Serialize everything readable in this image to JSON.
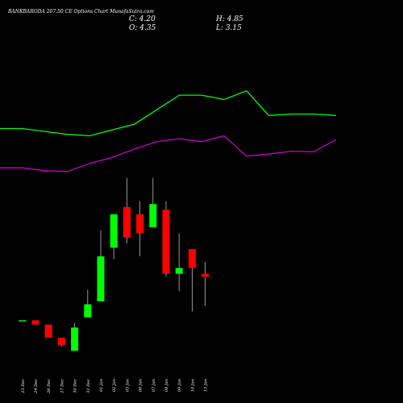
{
  "header": {
    "title": "BANKBARODA 207.50 CE Options Chart MunafaSutra.com",
    "close_label": "C: 4.20",
    "open_label": "O: 4.35",
    "high_label": "H: 4.85",
    "low_label": "L: 3.15"
  },
  "colors": {
    "background": "#000000",
    "up": "#00ff00",
    "down": "#ff0000",
    "wick": "#bbbbbb",
    "upper_band": "#00ff00",
    "lower_band": "#cc00cc",
    "text": "#ffffff"
  },
  "chart_data": {
    "type": "candlestick",
    "title": "BANKBARODA 207.50 CE Options Chart MunafaSutra.com",
    "candles": [
      {
        "label": "23 Dec",
        "open": 0.7,
        "close": 0.7,
        "high": 0.7,
        "low": 0.7
      },
      {
        "label": "24 Dec",
        "open": 0.7,
        "close": 0.55,
        "high": 0.7,
        "low": 0.55
      },
      {
        "label": "26 Dec",
        "open": 0.55,
        "close": 0.1,
        "high": 0.55,
        "low": 0.1
      },
      {
        "label": "27 Dec",
        "open": 0.1,
        "close": -0.15,
        "high": 0.1,
        "low": -0.2
      },
      {
        "label": "30 Dec",
        "open": -0.35,
        "close": 0.45,
        "high": 0.6,
        "low": -0.35
      },
      {
        "label": "31 Dec",
        "open": 0.8,
        "close": 1.25,
        "high": 1.75,
        "low": 0.8
      },
      {
        "label": "01 Jan",
        "open": 1.35,
        "close": 2.9,
        "high": 3.8,
        "low": 1.35
      },
      {
        "label": "02 Jan",
        "open": 3.2,
        "close": 4.35,
        "high": 4.35,
        "low": 2.8
      },
      {
        "label": "03 Jan",
        "open": 4.6,
        "close": 3.55,
        "high": 5.6,
        "low": 3.35
      },
      {
        "label": "06 Jan",
        "open": 4.35,
        "close": 3.7,
        "high": 4.8,
        "low": 2.9
      },
      {
        "label": "07 Jan",
        "open": 3.9,
        "close": 4.7,
        "high": 5.6,
        "low": 3.9
      },
      {
        "label": "08 Jan",
        "open": 4.5,
        "close": 2.3,
        "high": 4.8,
        "low": 2.2
      },
      {
        "label": "09 Jan",
        "open": 2.3,
        "close": 2.5,
        "high": 3.7,
        "low": 1.7
      },
      {
        "label": "10 Jan",
        "open": 3.15,
        "close": 2.5,
        "high": 3.15,
        "low": 1.0
      },
      {
        "label": "13 Jan",
        "open": 2.3,
        "close": 2.2,
        "high": 2.7,
        "low": 1.2
      }
    ],
    "bands": {
      "upper": [
        7.3,
        7.3,
        7.2,
        7.1,
        7.05,
        7.25,
        7.45,
        7.95,
        8.45,
        8.45,
        8.3,
        8.6,
        7.75,
        7.8,
        7.8,
        7.75
      ],
      "lower": [
        5.95,
        5.95,
        5.85,
        5.82,
        6.1,
        6.3,
        6.6,
        6.85,
        6.95,
        6.85,
        7.05,
        6.35,
        6.42,
        6.52,
        6.5,
        6.92
      ]
    },
    "ylim": [
      -0.9,
      10.2
    ],
    "candle_index_offset": 1
  }
}
